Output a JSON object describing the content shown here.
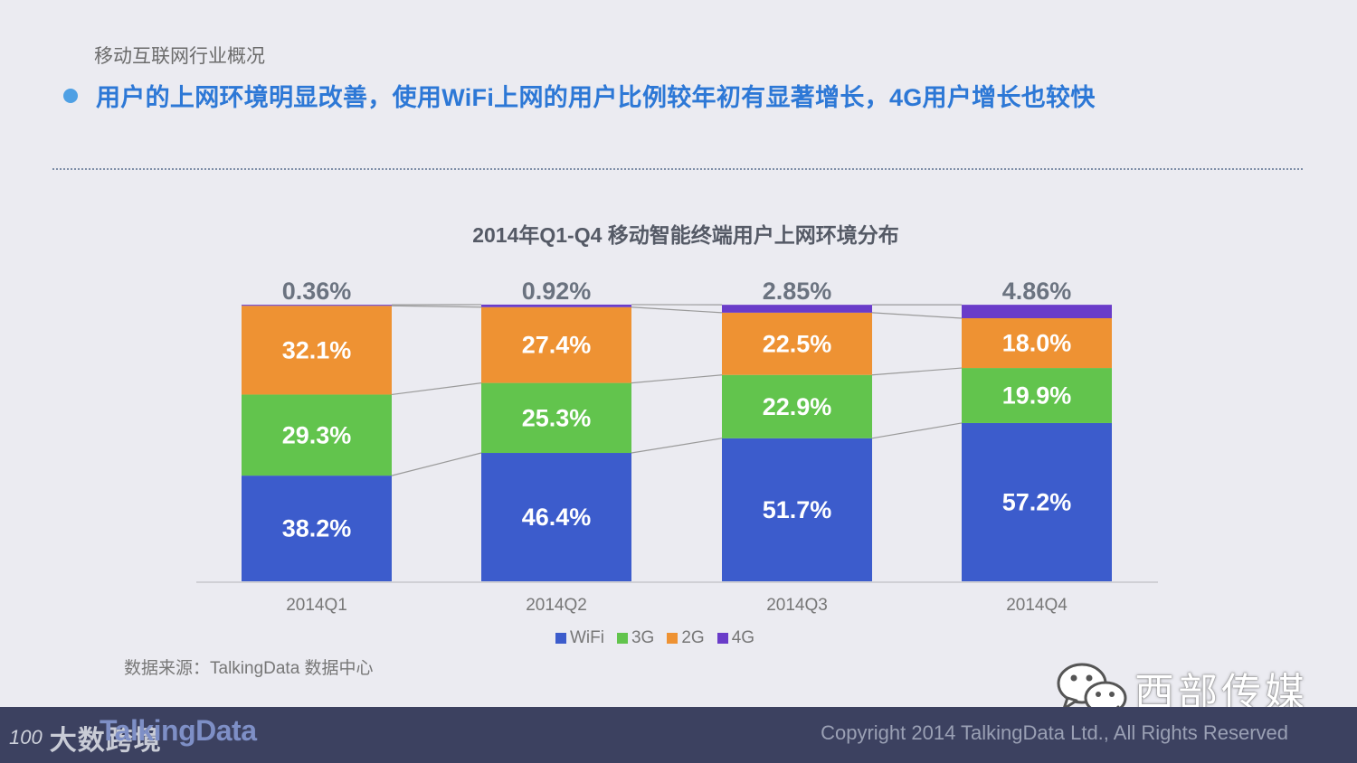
{
  "section_title": "移动互联网行业概况",
  "headline": "用户的上网环境明显改善，使用WiFi上网的用户比例较年初有显著增长，4G用户增长也较快",
  "colors": {
    "wifi": "#3c5ccc",
    "3g": "#62c44d",
    "2g": "#ee9233",
    "4g": "#6a3cc9",
    "headline": "#2d78d6",
    "footer": "#3c4160"
  },
  "chart_data": {
    "type": "bar",
    "stacked": true,
    "title": "2014年Q1-Q4 移动智能终端用户上网环境分布",
    "categories": [
      "2014Q1",
      "2014Q2",
      "2014Q3",
      "2014Q4"
    ],
    "series": [
      {
        "name": "WiFi",
        "key": "wifi",
        "values": [
          38.2,
          46.4,
          51.7,
          57.2
        ],
        "labels": [
          "38.2%",
          "46.4%",
          "51.7%",
          "57.2%"
        ]
      },
      {
        "name": "3G",
        "key": "3g",
        "values": [
          29.3,
          25.3,
          22.9,
          19.9
        ],
        "labels": [
          "29.3%",
          "25.3%",
          "22.9%",
          "19.9%"
        ]
      },
      {
        "name": "2G",
        "key": "2g",
        "values": [
          32.1,
          27.4,
          22.5,
          18.0
        ],
        "labels": [
          "32.1%",
          "27.4%",
          "22.5%",
          "18.0%"
        ]
      },
      {
        "name": "4G",
        "key": "4g",
        "values": [
          0.36,
          0.92,
          2.85,
          4.86
        ],
        "labels": [
          "0.36%",
          "0.92%",
          "2.85%",
          "4.86%"
        ]
      }
    ],
    "ylim": [
      0,
      100
    ],
    "xlabel": "",
    "ylabel": "",
    "legend": "bottom-center",
    "grid": false
  },
  "legend": [
    "WiFi",
    "3G",
    "2G",
    "4G"
  ],
  "source": "数据来源：TalkingData 数据中心",
  "watermark": "西部传媒",
  "footer": {
    "logo_number": "100",
    "logo_cn": "大数跨境",
    "brand": "TalkingData",
    "copyright": "Copyright 2014 TalkingData Ltd., All Rights Reserved"
  }
}
